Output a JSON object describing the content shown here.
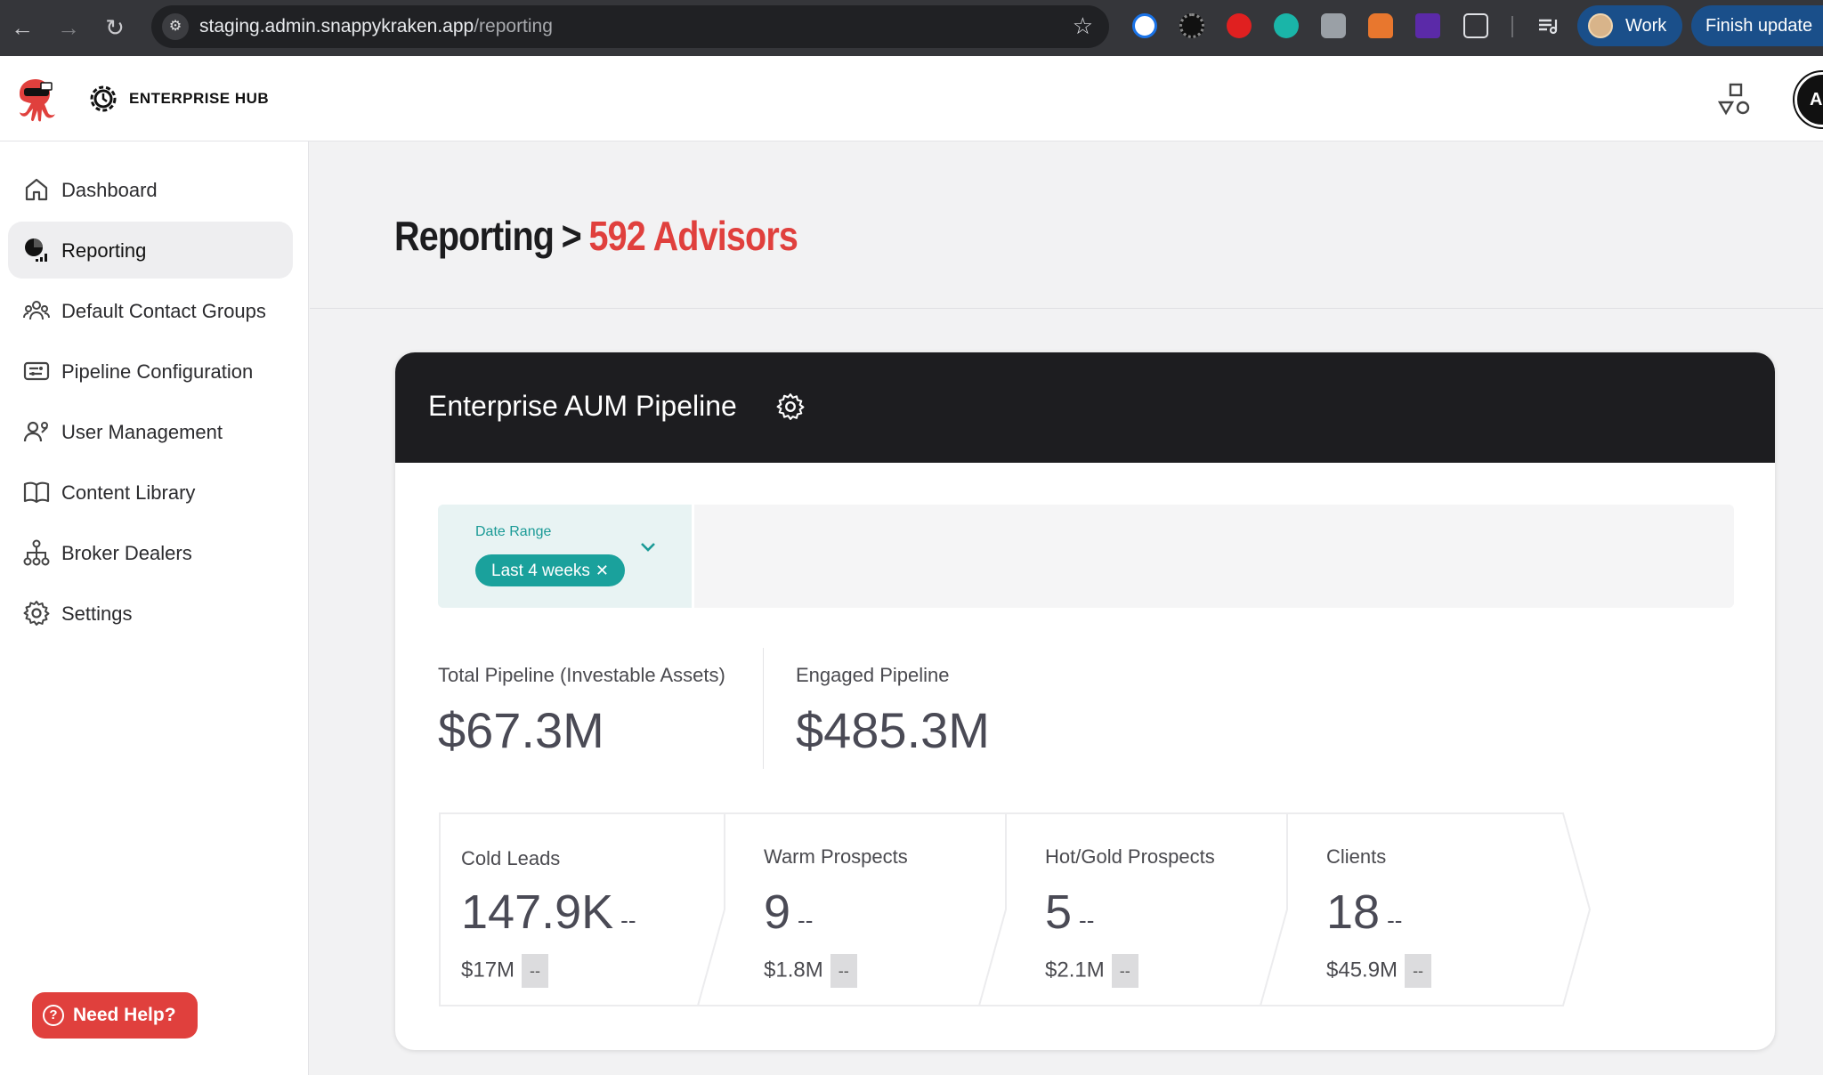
{
  "browser": {
    "url_host": "staging.admin.snappykraken.app",
    "url_path": "/reporting",
    "profile_label": "Work",
    "update_label": "Finish update",
    "back_icon": "←",
    "forward_icon": "→",
    "reload_icon": "↻",
    "site_settings_icon": "⚙",
    "bookmark_icon": "☆"
  },
  "header": {
    "hub_label": "ENTERPRISE HUB",
    "avatar_initials": "AI"
  },
  "sidebar": {
    "items": [
      {
        "label": "Dashboard",
        "icon": "home-icon"
      },
      {
        "label": "Reporting",
        "icon": "reporting-icon"
      },
      {
        "label": "Default Contact Groups",
        "icon": "contact-groups-icon"
      },
      {
        "label": "Pipeline Configuration",
        "icon": "pipeline-config-icon"
      },
      {
        "label": "User Management",
        "icon": "user-management-icon"
      },
      {
        "label": "Content Library",
        "icon": "book-icon"
      },
      {
        "label": "Broker Dealers",
        "icon": "hierarchy-icon"
      },
      {
        "label": "Settings",
        "icon": "gear-icon"
      }
    ],
    "active_index": 1,
    "help_label": "Need Help?",
    "help_icon": "?"
  },
  "page": {
    "breadcrumb_parent": "Reporting",
    "breadcrumb_separator": ">",
    "breadcrumb_current": "592 Advisors"
  },
  "card": {
    "title": "Enterprise AUM Pipeline",
    "date_range_label": "Date Range",
    "date_range_value": "Last 4 weeks",
    "chip_remove": "✕",
    "total_pipeline_label": "Total Pipeline (Investable Assets)",
    "total_pipeline_value": "$67.3M",
    "engaged_pipeline_label": "Engaged Pipeline",
    "engaged_pipeline_value": "$485.3M",
    "stages": [
      {
        "name": "Cold Leads",
        "count": "147.9K",
        "count_change": "--",
        "amount": "$17M",
        "amount_change": "--"
      },
      {
        "name": "Warm Prospects",
        "count": "9",
        "count_change": "--",
        "amount": "$1.8M",
        "amount_change": "--"
      },
      {
        "name": "Hot/Gold Prospects",
        "count": "5",
        "count_change": "--",
        "amount": "$2.1M",
        "amount_change": "--"
      },
      {
        "name": "Clients",
        "count": "18",
        "count_change": "--",
        "amount": "$45.9M",
        "amount_change": "--"
      }
    ]
  },
  "colors": {
    "accent_red": "#e0403d",
    "teal": "#1aa19c",
    "card_header": "#1d1d20",
    "chrome": "#35363a",
    "pill_blue": "#1a4f8a"
  }
}
